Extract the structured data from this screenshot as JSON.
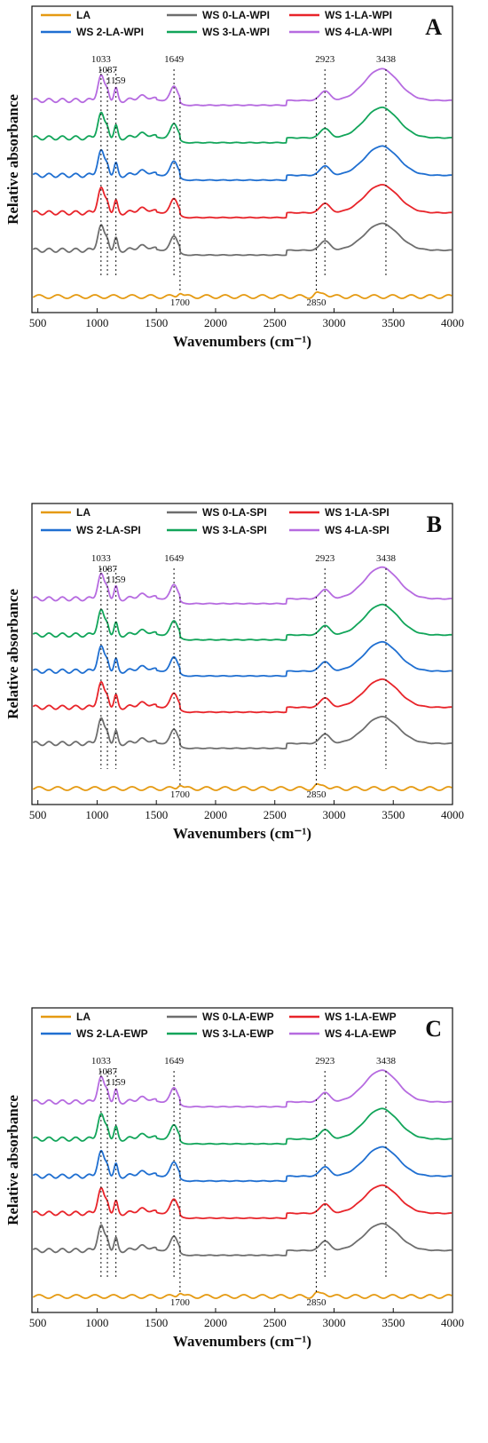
{
  "colors": {
    "LA": "#E59A12",
    "WS0": "#6E6E6E",
    "WS1": "#E8242A",
    "WS2": "#1F6FD1",
    "WS3": "#12A55A",
    "WS4": "#B66BE0"
  },
  "chart_data": [
    {
      "type": "line",
      "panel_label": "A",
      "xlabel": "Wavenumbers (cm⁻¹)",
      "ylabel": "Relative absorbance",
      "xlim": [
        450,
        4000
      ],
      "x_ticks": [
        "500",
        "1000",
        "1500",
        "2000",
        "2500",
        "3000",
        "3500",
        "4000"
      ],
      "legend_placement": "top",
      "series": [
        {
          "name": "LA",
          "color": "#E59A12",
          "offset": 0,
          "scale": 0.35
        },
        {
          "name": "WS 0-LA-WPI",
          "color": "#6E6E6E",
          "offset": 1,
          "scale": 1
        },
        {
          "name": "WS 1-LA-WPI",
          "color": "#E8242A",
          "offset": 2,
          "scale": 1
        },
        {
          "name": "WS 2-LA-WPI",
          "color": "#1F6FD1",
          "offset": 3,
          "scale": 1
        },
        {
          "name": "WS 3-LA-WPI",
          "color": "#12A55A",
          "offset": 4,
          "scale": 1
        },
        {
          "name": "WS 4-LA-WPI",
          "color": "#B66BE0",
          "offset": 5,
          "scale": 1
        }
      ],
      "annotations": [
        {
          "text": "1033",
          "x": 1033,
          "pos": "top"
        },
        {
          "text": "1087",
          "x": 1087,
          "pos": "top"
        },
        {
          "text": "1159",
          "x": 1159,
          "pos": "top"
        },
        {
          "text": "1649",
          "x": 1649,
          "pos": "top"
        },
        {
          "text": "2923",
          "x": 2923,
          "pos": "top"
        },
        {
          "text": "3438",
          "x": 3438,
          "pos": "top"
        },
        {
          "text": "1700",
          "x": 1700,
          "pos": "bottom"
        },
        {
          "text": "2850",
          "x": 2850,
          "pos": "bottom"
        }
      ]
    },
    {
      "type": "line",
      "panel_label": "B",
      "xlabel": "Wavenumbers (cm⁻¹)",
      "ylabel": "Relative absorbance",
      "xlim": [
        450,
        4000
      ],
      "x_ticks": [
        "500",
        "1000",
        "1500",
        "2000",
        "2500",
        "3000",
        "3500",
        "4000"
      ],
      "legend_placement": "top",
      "series": [
        {
          "name": "LA",
          "color": "#E59A12",
          "offset": 0,
          "scale": 0.35
        },
        {
          "name": "WS 0-LA-SPI",
          "color": "#6E6E6E",
          "offset": 1,
          "scale": 1
        },
        {
          "name": "WS 1-LA-SPI",
          "color": "#E8242A",
          "offset": 2,
          "scale": 1
        },
        {
          "name": "WS 2-LA-SPI",
          "color": "#1F6FD1",
          "offset": 3,
          "scale": 1
        },
        {
          "name": "WS 3-LA-SPI",
          "color": "#12A55A",
          "offset": 4,
          "scale": 1
        },
        {
          "name": "WS 4-LA-SPI",
          "color": "#B66BE0",
          "offset": 5,
          "scale": 1
        }
      ],
      "annotations": [
        {
          "text": "1033",
          "x": 1033,
          "pos": "top"
        },
        {
          "text": "1087",
          "x": 1087,
          "pos": "top"
        },
        {
          "text": "1159",
          "x": 1159,
          "pos": "top"
        },
        {
          "text": "1649",
          "x": 1649,
          "pos": "top"
        },
        {
          "text": "2923",
          "x": 2923,
          "pos": "top"
        },
        {
          "text": "3438",
          "x": 3438,
          "pos": "top"
        },
        {
          "text": "1700",
          "x": 1700,
          "pos": "bottom"
        },
        {
          "text": "2850",
          "x": 2850,
          "pos": "bottom"
        }
      ]
    },
    {
      "type": "line",
      "panel_label": "C",
      "xlabel": "Wavenumbers (cm⁻¹)",
      "ylabel": "Relative absorbance",
      "xlim": [
        450,
        4000
      ],
      "x_ticks": [
        "500",
        "1000",
        "1500",
        "2000",
        "2500",
        "3000",
        "3500",
        "4000"
      ],
      "legend_placement": "top",
      "series": [
        {
          "name": "LA",
          "color": "#E59A12",
          "offset": 0,
          "scale": 0.35
        },
        {
          "name": "WS 0-LA-EWP",
          "color": "#6E6E6E",
          "offset": 1,
          "scale": 1
        },
        {
          "name": "WS 1-LA-EWP",
          "color": "#E8242A",
          "offset": 2,
          "scale": 1
        },
        {
          "name": "WS 2-LA-EWP",
          "color": "#1F6FD1",
          "offset": 3,
          "scale": 1
        },
        {
          "name": "WS 3-LA-EWP",
          "color": "#12A55A",
          "offset": 4,
          "scale": 1
        },
        {
          "name": "WS 4-LA-EWP",
          "color": "#B66BE0",
          "offset": 5,
          "scale": 1
        }
      ],
      "annotations": [
        {
          "text": "1033",
          "x": 1033,
          "pos": "top"
        },
        {
          "text": "1087",
          "x": 1087,
          "pos": "top"
        },
        {
          "text": "1159",
          "x": 1159,
          "pos": "top"
        },
        {
          "text": "1649",
          "x": 1649,
          "pos": "top"
        },
        {
          "text": "2923",
          "x": 2923,
          "pos": "top"
        },
        {
          "text": "3438",
          "x": 3438,
          "pos": "top"
        },
        {
          "text": "1700",
          "x": 1700,
          "pos": "bottom"
        },
        {
          "text": "2850",
          "x": 2850,
          "pos": "bottom"
        }
      ]
    }
  ]
}
